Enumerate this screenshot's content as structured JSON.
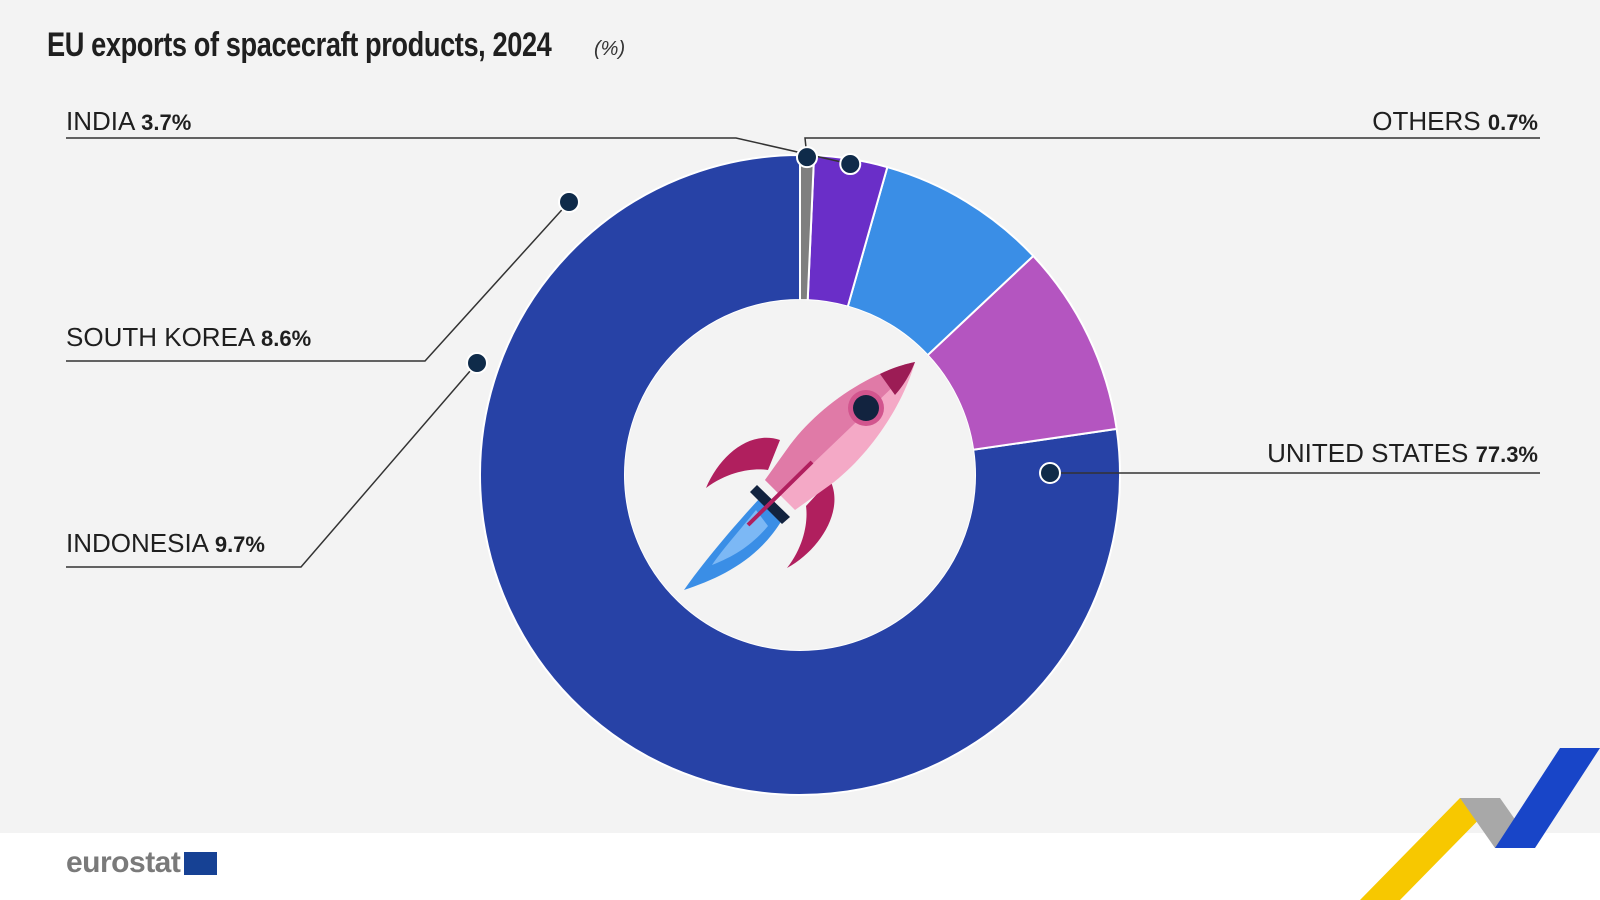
{
  "title": "EU exports of spacecraft products, 2024",
  "unit": "(%)",
  "brand": {
    "logo_text": "eurostat"
  },
  "colors": {
    "background": "#f3f3f3",
    "united_states": "#2742a6",
    "indonesia": "#b455c0",
    "south_korea": "#3a8ee6",
    "india": "#6a2ec8",
    "others": "#7f7f7f",
    "marker": "#0f2b4a",
    "center_icon": "rocket-icon"
  },
  "chart_data": {
    "type": "pie",
    "style": "donut",
    "start_angle_deg": 0,
    "direction": "counterclockwise",
    "legend": "none",
    "slices": [
      {
        "label": "UNITED STATES",
        "value": 77.3,
        "value_label": "77.3%",
        "color": "#2742a6"
      },
      {
        "label": "INDONESIA",
        "value": 9.7,
        "value_label": "9.7%",
        "color": "#b455c0"
      },
      {
        "label": "SOUTH KOREA",
        "value": 8.6,
        "value_label": "8.6%",
        "color": "#3a8ee6"
      },
      {
        "label": "INDIA",
        "value": 3.7,
        "value_label": "3.7%",
        "color": "#6a2ec8"
      },
      {
        "label": "OTHERS",
        "value": 0.7,
        "value_label": "0.7%",
        "color": "#7f7f7f"
      }
    ]
  }
}
